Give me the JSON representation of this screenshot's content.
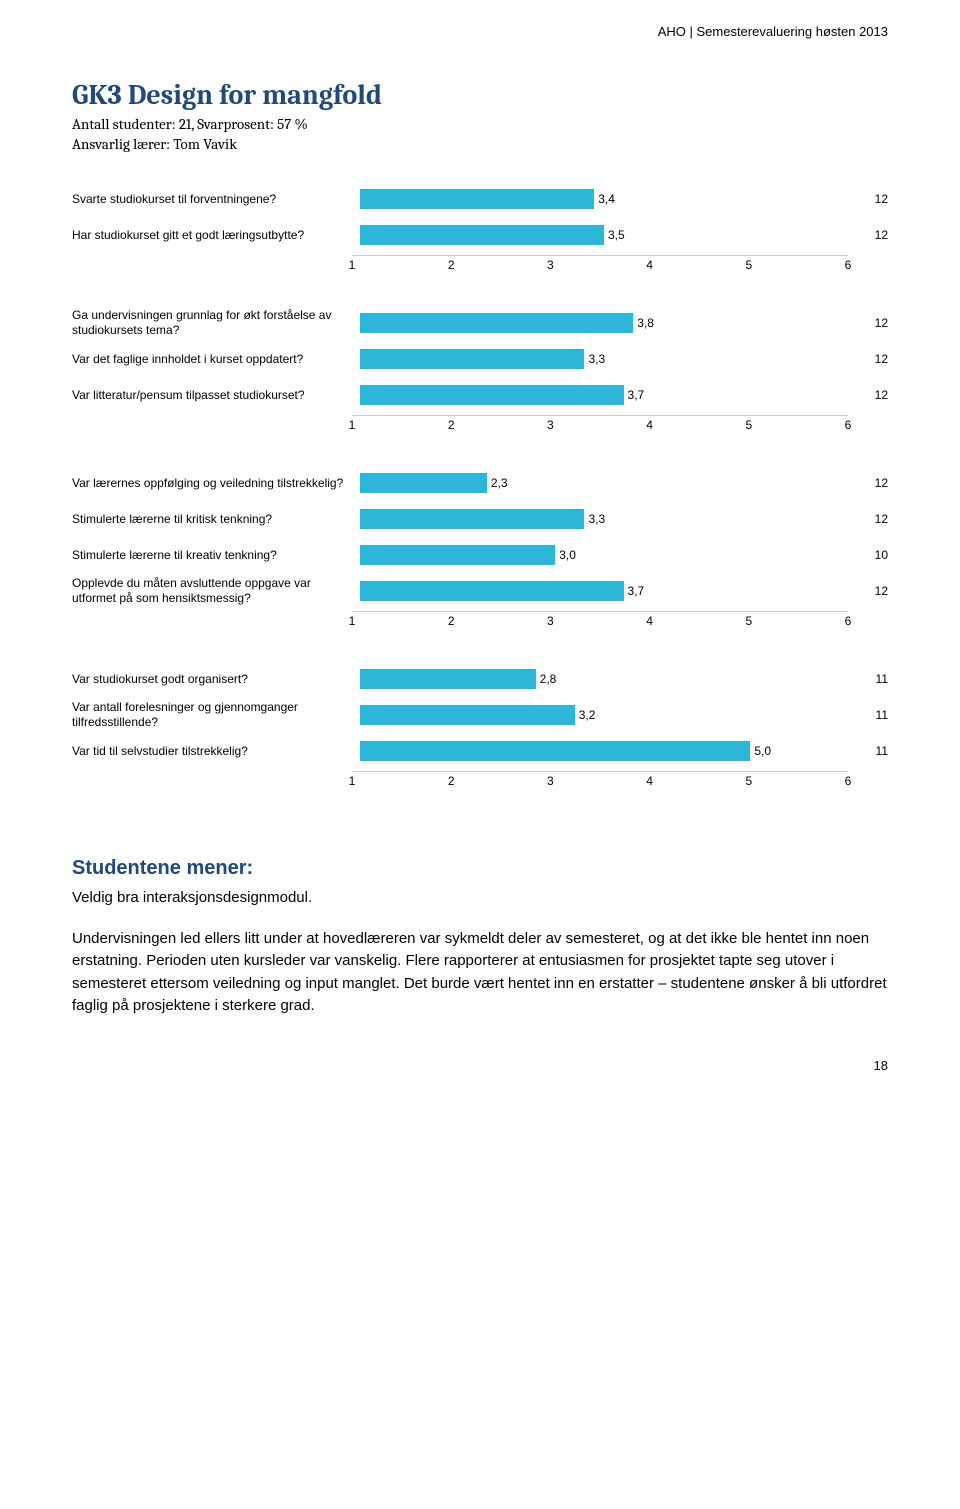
{
  "header": "AHO | Semesterevaluering høsten 2013",
  "title": "GK3 Design for mangfold",
  "subtitle1": "Antall studenter: 21, Svarprosent: 57 %",
  "subtitle2": "Ansvarlig lærer: Tom Vavik",
  "bar_color": "#2db6d8",
  "axis": {
    "min": 1,
    "max": 6,
    "ticks": [
      "1",
      "2",
      "3",
      "4",
      "5",
      "6"
    ]
  },
  "charts": [
    {
      "rows": [
        {
          "label": "Svarte studiokurset til forventningene?",
          "value": 3.4,
          "value_label": "3,4",
          "count": "12"
        },
        {
          "label": "Har studiokurset gitt et godt læringsutbytte?",
          "value": 3.5,
          "value_label": "3,5",
          "count": "12"
        }
      ]
    },
    {
      "rows": [
        {
          "label": "Ga undervisningen grunnlag for økt forståelse av studiokursets tema?",
          "value": 3.8,
          "value_label": "3,8",
          "count": "12"
        },
        {
          "label": "Var det faglige innholdet i kurset oppdatert?",
          "value": 3.3,
          "value_label": "3,3",
          "count": "12"
        },
        {
          "label": "Var litteratur/pensum tilpasset studiokurset?",
          "value": 3.7,
          "value_label": "3,7",
          "count": "12"
        }
      ]
    },
    {
      "rows": [
        {
          "label": "Var lærernes oppfølging og veiledning tilstrekkelig?",
          "value": 2.3,
          "value_label": "2,3",
          "count": "12"
        },
        {
          "label": "Stimulerte lærerne til kritisk tenkning?",
          "value": 3.3,
          "value_label": "3,3",
          "count": "12"
        },
        {
          "label": "Stimulerte lærerne til kreativ tenkning?",
          "value": 3.0,
          "value_label": "3,0",
          "count": "10"
        },
        {
          "label": "Opplevde du måten avsluttende oppgave var utformet på som hensiktsmessig?",
          "value": 3.7,
          "value_label": "3,7",
          "count": "12"
        }
      ]
    },
    {
      "rows": [
        {
          "label": "Var studiokurset godt organisert?",
          "value": 2.8,
          "value_label": "2,8",
          "count": "11"
        },
        {
          "label": "Var antall forelesninger og gjennomganger tilfredsstillende?",
          "value": 3.2,
          "value_label": "3,2",
          "count": "11"
        },
        {
          "label": "Var tid til selvstudier tilstrekkelig?",
          "value": 5.0,
          "value_label": "5,0",
          "count": "11"
        }
      ]
    }
  ],
  "comments": {
    "heading": "Studentene mener:",
    "p1": "Veldig bra interaksjonsdesignmodul.",
    "p2": "Undervisningen led ellers litt under at hovedlæreren var sykmeldt deler av semesteret, og at det ikke ble hentet inn noen erstatning. Perioden uten kursleder var vanskelig. Flere rapporterer at entusiasmen for prosjektet tapte seg utover i semesteret ettersom veiledning og input manglet. Det burde vært hentet inn en erstatter – studentene ønsker å bli utfordret faglig på prosjektene i sterkere grad."
  },
  "page_number": "18"
}
